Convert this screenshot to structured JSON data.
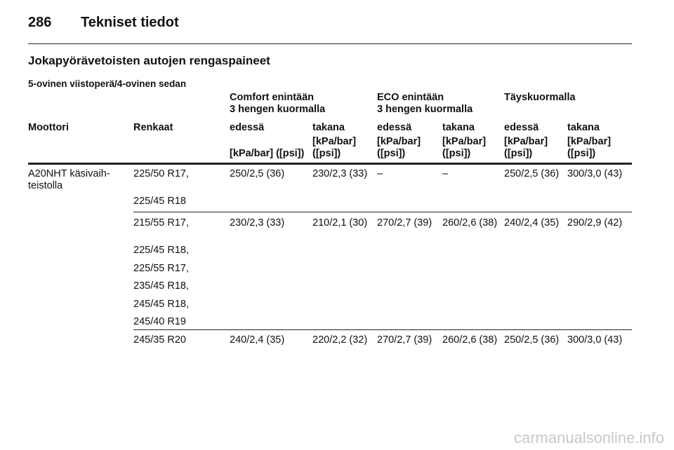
{
  "header": {
    "page_number": "286",
    "title": "Tekniset tiedot"
  },
  "section_title": "Jokapyörävetoisten autojen rengaspaineet",
  "subtitle": "5-ovinen viistoperä/4-ovinen sedan",
  "table": {
    "group_headers": [
      [
        "Comfort enintään",
        "3 hengen kuormalla"
      ],
      [
        "ECO enintään",
        "3 hengen kuormalla"
      ],
      [
        "Täyskuormalla"
      ]
    ],
    "columns": [
      "Moottori",
      "Renkaat",
      "edessä",
      "takana",
      "edessä",
      "takana",
      "edessä",
      "takana"
    ],
    "units": [
      "[kPa/bar] ([psi])",
      "[kPa/bar] ([psi])",
      "[kPa/bar] ([psi])",
      "[kPa/bar] ([psi])",
      "[kPa/bar] ([psi])",
      "[kPa/bar] ([psi])"
    ],
    "rows": [
      {
        "engine": [
          "A20NHT käsivaih-",
          "teistolla"
        ],
        "tyres": [
          "225/50 R17,",
          "225/45 R18"
        ],
        "values": [
          "250/2,5 (36)",
          "230/2,3 (33)",
          "–",
          "–",
          "250/2,5 (36)",
          "300/3,0 (43)"
        ]
      },
      {
        "tyres": [
          "215/55 R17,",
          "225/45 R18,",
          "225/55 R17,",
          "235/45 R18,",
          "245/45 R18,",
          "245/40 R19"
        ],
        "values": [
          "230/2,3 (33)",
          "210/2,1 (30)",
          "270/2,7 (39)",
          "260/2,6 (38)",
          "240/2,4 (35)",
          "290/2,9 (42)"
        ]
      },
      {
        "tyres": [
          "245/35 R20"
        ],
        "values": [
          "240/2,4 (35)",
          "220/2,2 (32)",
          "270/2,7 (39)",
          "260/2,6 (38)",
          "250/2,5 (36)",
          "300/3,0 (43)"
        ]
      }
    ]
  },
  "watermark": "carmanualsonline.info"
}
